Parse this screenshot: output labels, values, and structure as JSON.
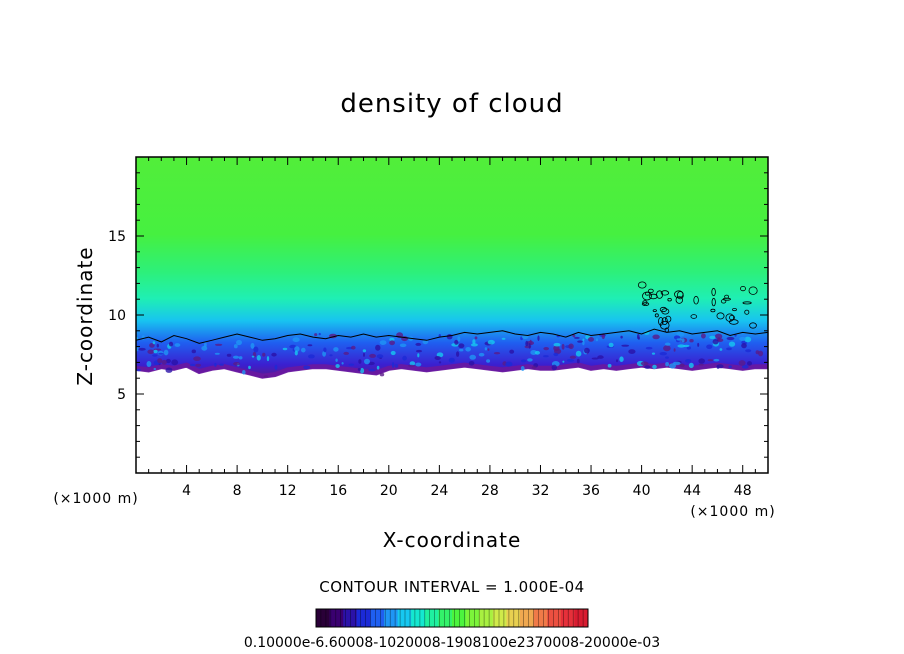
{
  "chart_data": {
    "type": "heatmap",
    "title": "density of cloud",
    "xlabel": "X-coordinate",
    "ylabel": "Z-coordinate",
    "x_unit": "(×1000 m)",
    "z_unit": "(×1000 m)",
    "xlim": [
      0,
      50
    ],
    "ylim": [
      0,
      20
    ],
    "x_ticks": [
      4,
      8,
      12,
      16,
      20,
      24,
      28,
      32,
      36,
      40,
      44,
      48
    ],
    "y_ticks": [
      5,
      10,
      15
    ],
    "field": {
      "cloud_base_z": [
        6.5,
        6.4,
        6.6,
        6.5,
        6.7,
        6.3,
        6.5,
        6.6,
        6.4,
        6.2,
        6.0,
        6.1,
        6.4,
        6.5,
        6.6,
        6.6,
        6.5,
        6.4,
        6.3,
        6.2,
        6.5,
        6.6,
        6.5,
        6.4,
        6.5,
        6.6,
        6.7,
        6.6,
        6.5,
        6.4,
        6.5,
        6.6,
        6.5,
        6.5,
        6.6,
        6.7,
        6.5,
        6.6,
        6.5,
        6.6,
        6.7,
        6.6,
        6.7,
        6.6,
        6.5,
        6.6,
        6.7,
        6.6,
        6.5,
        6.6,
        6.6
      ],
      "contour_z": [
        8.4,
        8.6,
        8.3,
        8.7,
        8.5,
        8.2,
        8.4,
        8.6,
        8.8,
        8.6,
        8.4,
        8.5,
        8.7,
        8.8,
        8.6,
        8.5,
        8.7,
        8.6,
        8.8,
        8.6,
        8.7,
        8.6,
        8.5,
        8.4,
        8.6,
        8.7,
        8.9,
        8.8,
        8.9,
        9.0,
        8.8,
        8.7,
        8.9,
        8.8,
        8.6,
        8.9,
        8.7,
        8.8,
        8.9,
        9.0,
        8.8,
        9.1,
        8.9,
        9.0,
        8.8,
        8.9,
        9.0,
        8.7,
        8.9,
        8.8,
        8.9
      ],
      "top_z": 20
    },
    "colorbar": {
      "colors": [
        "#2a0038",
        "#3a0070",
        "#2b12a8",
        "#1b2ad6",
        "#1f5ff0",
        "#1f96f5",
        "#17c8f0",
        "#14e8d0",
        "#1ff0a0",
        "#33f26a",
        "#4cf43e",
        "#7cf43a",
        "#a8f040",
        "#d0ea4a",
        "#e8d050",
        "#f0a850",
        "#f07a48",
        "#ec5040",
        "#e6303a",
        "#d81c30"
      ],
      "min": 0.1,
      "max": 0.3,
      "labels_text": "0.10000e-6.60008-1020008-1908100e2370008-20000e-03"
    },
    "contour_interval": "CONTOUR INTERVAL = 1.000E-04"
  }
}
